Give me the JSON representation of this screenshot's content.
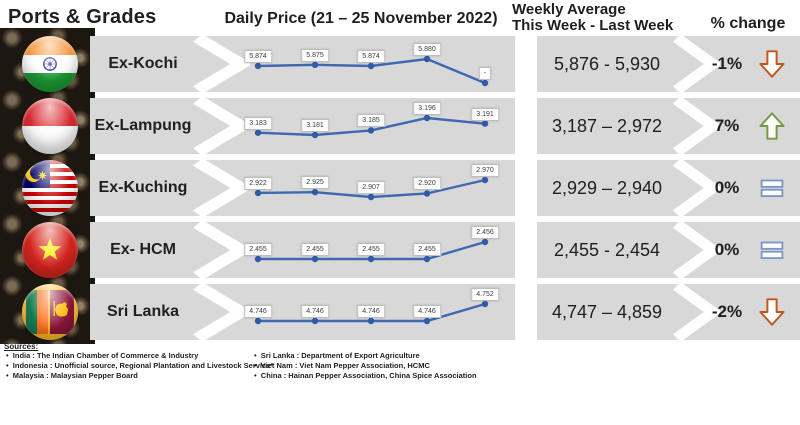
{
  "header": {
    "ports_grades": "Ports & Grades",
    "daily_price_title": "Daily Price (21 – 25 November 2022)",
    "weekly_avg_line1": "Weekly Average",
    "weekly_avg_line2": "This Week - Last Week",
    "pct_change": "% change"
  },
  "colors": {
    "band_gray": "#d8d8d8",
    "spark_line": "#3e68b2",
    "spark_dot": "#2f5ba7",
    "up_arrow": "#6f9c41",
    "down_arrow": "#c0571c",
    "equals": "#7d96c5"
  },
  "rows": [
    {
      "port": "Ex-Kochi",
      "flag": "india-flag",
      "weekly_average": "5,876 - 5,930",
      "pct_change": "-1%",
      "indicator": "down"
    },
    {
      "port": "Ex-Lampung",
      "flag": "indonesia-flag",
      "weekly_average": "3,187 – 2,972",
      "pct_change": "7%",
      "indicator": "up"
    },
    {
      "port": "Ex-Kuching",
      "flag": "malaysia-flag",
      "weekly_average": "2,929 – 2,940",
      "pct_change": "0%",
      "indicator": "flat"
    },
    {
      "port": "Ex- HCM",
      "flag": "vietnam-flag",
      "weekly_average": "2,455 - 2,454",
      "pct_change": "0%",
      "indicator": "flat"
    },
    {
      "port": "Sri Lanka",
      "flag": "srilanka-flag",
      "weekly_average": "4,747 – 4,859",
      "pct_change": "-2%",
      "indicator": "down"
    }
  ],
  "chart_data": [
    {
      "type": "line",
      "name": "Ex-Kochi",
      "x": [
        "21",
        "22",
        "23",
        "24",
        "25"
      ],
      "values": [
        5874,
        5875,
        5874,
        5880,
        null
      ],
      "point_labels": [
        "5.874",
        "5.875",
        "5.874",
        "5.880",
        "-"
      ]
    },
    {
      "type": "line",
      "name": "Ex-Lampung",
      "x": [
        "21",
        "22",
        "23",
        "24",
        "25"
      ],
      "values": [
        3183,
        3181,
        3185,
        3196,
        3191
      ],
      "point_labels": [
        "3.183",
        "3.181",
        "3.185",
        "3.196",
        "3.191"
      ]
    },
    {
      "type": "line",
      "name": "Ex-Kuching",
      "x": [
        "21",
        "22",
        "23",
        "24",
        "25"
      ],
      "values": [
        2922,
        2925,
        2907,
        2920,
        2970
      ],
      "point_labels": [
        "2.922",
        "2.925",
        "2.907",
        "2.920",
        "2.970"
      ]
    },
    {
      "type": "line",
      "name": "Ex- HCM",
      "x": [
        "21",
        "22",
        "23",
        "24",
        "25"
      ],
      "values": [
        2455,
        2455,
        2455,
        2455,
        2456
      ],
      "point_labels": [
        "2.455",
        "2.455",
        "2.455",
        "2.455",
        "2.456"
      ]
    },
    {
      "type": "line",
      "name": "Sri Lanka",
      "x": [
        "21",
        "22",
        "23",
        "24",
        "25"
      ],
      "values": [
        4746,
        4746,
        4746,
        4746,
        4752
      ],
      "point_labels": [
        "4.746",
        "4.746",
        "4.746",
        "4.746",
        "4.752"
      ]
    }
  ],
  "sources": {
    "title": "Sources:",
    "left": [
      "India : The Indian Chamber of Commerce & Industry",
      "Indonesia : Unofficial source, Regional Plantation and Livestock Service*",
      "Malaysia : Malaysian Pepper Board"
    ],
    "right": [
      "Sri Lanka : Department of Export Agriculture",
      "Viet Nam : Viet Nam Pepper Association, HCMC",
      "China : Hainan Pepper Association, China Spice Association"
    ]
  }
}
